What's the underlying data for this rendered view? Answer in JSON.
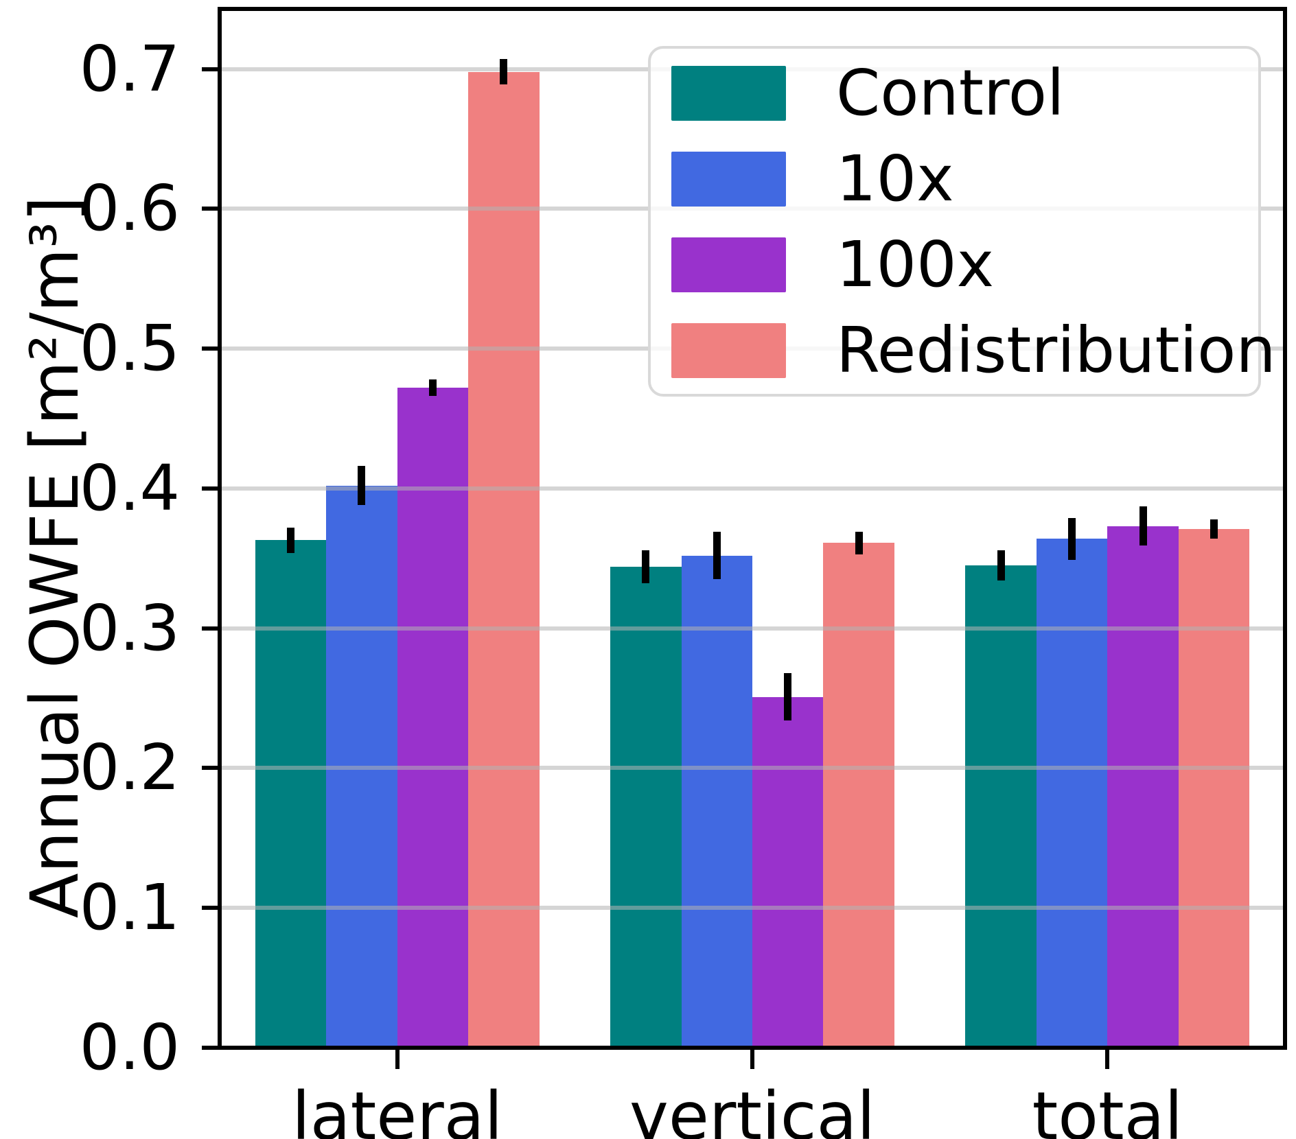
{
  "chart_data": {
    "type": "bar",
    "title": "",
    "xlabel": "",
    "ylabel": "Annual OWFE [m²/m³]",
    "categories": [
      "lateral",
      "vertical",
      "total"
    ],
    "series": [
      {
        "name": "Control",
        "color": "#008080",
        "values": [
          0.363,
          0.344,
          0.345
        ],
        "errors": [
          0.009,
          0.012,
          0.011
        ]
      },
      {
        "name": "10x",
        "color": "#4169E1",
        "values": [
          0.402,
          0.352,
          0.364
        ],
        "errors": [
          0.014,
          0.017,
          0.015
        ]
      },
      {
        "name": "100x",
        "color": "#9932CC",
        "values": [
          0.472,
          0.251,
          0.373
        ],
        "errors": [
          0.006,
          0.017,
          0.014
        ]
      },
      {
        "name": "Redistribution",
        "color": "#F08080",
        "values": [
          0.698,
          0.361,
          0.371
        ],
        "errors": [
          0.009,
          0.008,
          0.007
        ]
      }
    ],
    "ylim": [
      0,
      0.743
    ],
    "yticks": [
      0.0,
      0.1,
      0.2,
      0.3,
      0.4,
      0.5,
      0.6,
      0.7
    ],
    "ytick_labels": [
      "0.0",
      "0.1",
      "0.2",
      "0.3",
      "0.4",
      "0.5",
      "0.6",
      "0.7"
    ],
    "grid": true,
    "grid_over_bars": true,
    "error_bar_color": "#000000",
    "legend_position": "upper right",
    "bar_group_width_units": 0.8,
    "bars_per_group": 4
  }
}
